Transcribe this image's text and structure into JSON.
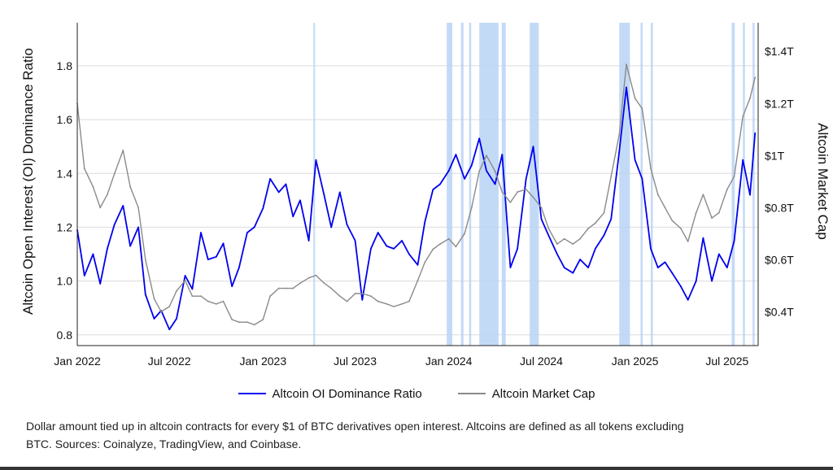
{
  "chart_data": {
    "type": "line",
    "title": "",
    "xlabel": "",
    "ylabel": "Altcoin Open Interest (OI) Dominance Ratio",
    "y2label": "Altcoin Market Cap",
    "x_range": [
      "2022-01-01",
      "2025-08-31"
    ],
    "ylim": [
      0.76,
      1.96
    ],
    "y2lim": [
      0.27,
      1.51
    ],
    "x_ticks": [
      "Jan 2022",
      "Jul 2022",
      "Jan 2023",
      "Jul 2023",
      "Jan 2024",
      "Jul 2024",
      "Jan 2025",
      "Jul 2025"
    ],
    "y_ticks": [
      "0.8",
      "1.0",
      "1.2",
      "1.4",
      "1.6",
      "1.8"
    ],
    "y2_ticks": [
      "$0.4T",
      "$0.6T",
      "$0.8T",
      "$1T",
      "$1.2T",
      "$1.4T"
    ],
    "grid": "horizontal",
    "legend_position": "bottom",
    "colors": {
      "ratio": "#0000ee",
      "market_cap": "#8a8a8a",
      "highlight": "#b9d3f5"
    },
    "highlight_ranges": [
      [
        "2023-04-10",
        "2023-04-13"
      ],
      [
        "2023-12-28",
        "2024-01-08"
      ],
      [
        "2024-01-25",
        "2024-01-30"
      ],
      [
        "2024-02-10",
        "2024-02-14"
      ],
      [
        "2024-03-01",
        "2024-04-08"
      ],
      [
        "2024-04-14",
        "2024-04-22"
      ],
      [
        "2024-06-08",
        "2024-06-26"
      ],
      [
        "2024-12-01",
        "2024-12-22"
      ],
      [
        "2025-01-12",
        "2025-01-16"
      ],
      [
        "2025-02-01",
        "2025-02-05"
      ],
      [
        "2025-07-10",
        "2025-07-16"
      ],
      [
        "2025-08-01",
        "2025-08-05"
      ],
      [
        "2025-08-20",
        "2025-08-24"
      ]
    ],
    "series": [
      {
        "name": "Altcoin OI Dominance Ratio",
        "axis": "left",
        "x": [
          "2022-01-01",
          "2022-01-15",
          "2022-02-01",
          "2022-02-15",
          "2022-03-01",
          "2022-03-15",
          "2022-04-01",
          "2022-04-15",
          "2022-05-01",
          "2022-05-15",
          "2022-06-01",
          "2022-06-15",
          "2022-07-01",
          "2022-07-15",
          "2022-08-01",
          "2022-08-15",
          "2022-09-01",
          "2022-09-15",
          "2022-10-01",
          "2022-10-15",
          "2022-11-01",
          "2022-11-15",
          "2022-12-01",
          "2022-12-15",
          "2023-01-01",
          "2023-01-15",
          "2023-02-01",
          "2023-02-15",
          "2023-03-01",
          "2023-03-15",
          "2023-04-01",
          "2023-04-15",
          "2023-05-01",
          "2023-05-15",
          "2023-06-01",
          "2023-06-15",
          "2023-07-01",
          "2023-07-15",
          "2023-08-01",
          "2023-08-15",
          "2023-09-01",
          "2023-09-15",
          "2023-10-01",
          "2023-10-15",
          "2023-11-01",
          "2023-11-15",
          "2023-12-01",
          "2023-12-15",
          "2024-01-01",
          "2024-01-15",
          "2024-02-01",
          "2024-02-15",
          "2024-03-01",
          "2024-03-15",
          "2024-04-01",
          "2024-04-15",
          "2024-05-01",
          "2024-05-15",
          "2024-06-01",
          "2024-06-15",
          "2024-07-01",
          "2024-07-15",
          "2024-08-01",
          "2024-08-15",
          "2024-09-01",
          "2024-09-15",
          "2024-10-01",
          "2024-10-15",
          "2024-11-01",
          "2024-11-15",
          "2024-12-01",
          "2024-12-15",
          "2025-01-01",
          "2025-01-15",
          "2025-02-01",
          "2025-02-15",
          "2025-03-01",
          "2025-03-15",
          "2025-04-01",
          "2025-04-15",
          "2025-05-01",
          "2025-05-15",
          "2025-06-01",
          "2025-06-15",
          "2025-07-01",
          "2025-07-15",
          "2025-08-01",
          "2025-08-15",
          "2025-08-25"
        ],
        "values": [
          1.19,
          1.02,
          1.1,
          0.99,
          1.12,
          1.21,
          1.28,
          1.13,
          1.2,
          0.95,
          0.86,
          0.89,
          0.82,
          0.86,
          1.02,
          0.97,
          1.18,
          1.08,
          1.09,
          1.14,
          0.98,
          1.05,
          1.18,
          1.2,
          1.27,
          1.38,
          1.33,
          1.36,
          1.24,
          1.3,
          1.15,
          1.45,
          1.32,
          1.2,
          1.33,
          1.21,
          1.15,
          0.93,
          1.12,
          1.18,
          1.13,
          1.12,
          1.15,
          1.1,
          1.06,
          1.22,
          1.34,
          1.36,
          1.41,
          1.47,
          1.38,
          1.43,
          1.53,
          1.41,
          1.36,
          1.47,
          1.05,
          1.12,
          1.38,
          1.5,
          1.23,
          1.17,
          1.1,
          1.05,
          1.03,
          1.08,
          1.05,
          1.12,
          1.17,
          1.23,
          1.48,
          1.72,
          1.45,
          1.38,
          1.12,
          1.05,
          1.07,
          1.03,
          0.98,
          0.93,
          1.0,
          1.16,
          1.0,
          1.1,
          1.05,
          1.15,
          1.45,
          1.32,
          1.55
        ]
      },
      {
        "name": "Altcoin Market Cap",
        "axis": "right",
        "x": [
          "2022-01-01",
          "2022-01-15",
          "2022-02-01",
          "2022-02-15",
          "2022-03-01",
          "2022-03-15",
          "2022-04-01",
          "2022-04-15",
          "2022-05-01",
          "2022-05-15",
          "2022-06-01",
          "2022-06-15",
          "2022-07-01",
          "2022-07-15",
          "2022-08-01",
          "2022-08-15",
          "2022-09-01",
          "2022-09-15",
          "2022-10-01",
          "2022-10-15",
          "2022-11-01",
          "2022-11-15",
          "2022-12-01",
          "2022-12-15",
          "2023-01-01",
          "2023-01-15",
          "2023-02-01",
          "2023-02-15",
          "2023-03-01",
          "2023-03-15",
          "2023-04-01",
          "2023-04-15",
          "2023-05-01",
          "2023-05-15",
          "2023-06-01",
          "2023-06-15",
          "2023-07-01",
          "2023-07-15",
          "2023-08-01",
          "2023-08-15",
          "2023-09-01",
          "2023-09-15",
          "2023-10-01",
          "2023-10-15",
          "2023-11-01",
          "2023-11-15",
          "2023-12-01",
          "2023-12-15",
          "2024-01-01",
          "2024-01-15",
          "2024-02-01",
          "2024-02-15",
          "2024-03-01",
          "2024-03-15",
          "2024-04-01",
          "2024-04-15",
          "2024-05-01",
          "2024-05-15",
          "2024-06-01",
          "2024-06-15",
          "2024-07-01",
          "2024-07-15",
          "2024-08-01",
          "2024-08-15",
          "2024-09-01",
          "2024-09-15",
          "2024-10-01",
          "2024-10-15",
          "2024-11-01",
          "2024-11-15",
          "2024-12-01",
          "2024-12-15",
          "2025-01-01",
          "2025-01-15",
          "2025-02-01",
          "2025-02-15",
          "2025-03-01",
          "2025-03-15",
          "2025-04-01",
          "2025-04-15",
          "2025-05-01",
          "2025-05-15",
          "2025-06-01",
          "2025-06-15",
          "2025-07-01",
          "2025-07-15",
          "2025-08-01",
          "2025-08-15",
          "2025-08-25"
        ],
        "values": [
          1.2,
          0.95,
          0.88,
          0.8,
          0.85,
          0.93,
          1.02,
          0.88,
          0.8,
          0.6,
          0.45,
          0.4,
          0.42,
          0.48,
          0.52,
          0.46,
          0.46,
          0.44,
          0.43,
          0.44,
          0.37,
          0.36,
          0.36,
          0.35,
          0.37,
          0.46,
          0.49,
          0.49,
          0.49,
          0.51,
          0.53,
          0.54,
          0.51,
          0.49,
          0.46,
          0.44,
          0.47,
          0.47,
          0.46,
          0.44,
          0.43,
          0.42,
          0.43,
          0.44,
          0.52,
          0.59,
          0.64,
          0.66,
          0.68,
          0.65,
          0.7,
          0.8,
          0.94,
          1.0,
          0.94,
          0.86,
          0.82,
          0.86,
          0.87,
          0.84,
          0.8,
          0.72,
          0.66,
          0.68,
          0.66,
          0.68,
          0.72,
          0.74,
          0.78,
          0.92,
          1.08,
          1.35,
          1.22,
          1.18,
          0.95,
          0.85,
          0.8,
          0.75,
          0.72,
          0.67,
          0.78,
          0.85,
          0.76,
          0.78,
          0.87,
          0.92,
          1.15,
          1.22,
          1.3
        ]
      }
    ]
  },
  "legend": {
    "ratio_label": "Altcoin OI Dominance Ratio",
    "market_cap_label": "Altcoin Market Cap"
  },
  "caption": "Dollar amount tied up in altcoin contracts for every $1 of BTC derivatives open interest. Altcoins are defined as all tokens excluding BTC. Sources: Coinalyze, TradingView, and Coinbase."
}
